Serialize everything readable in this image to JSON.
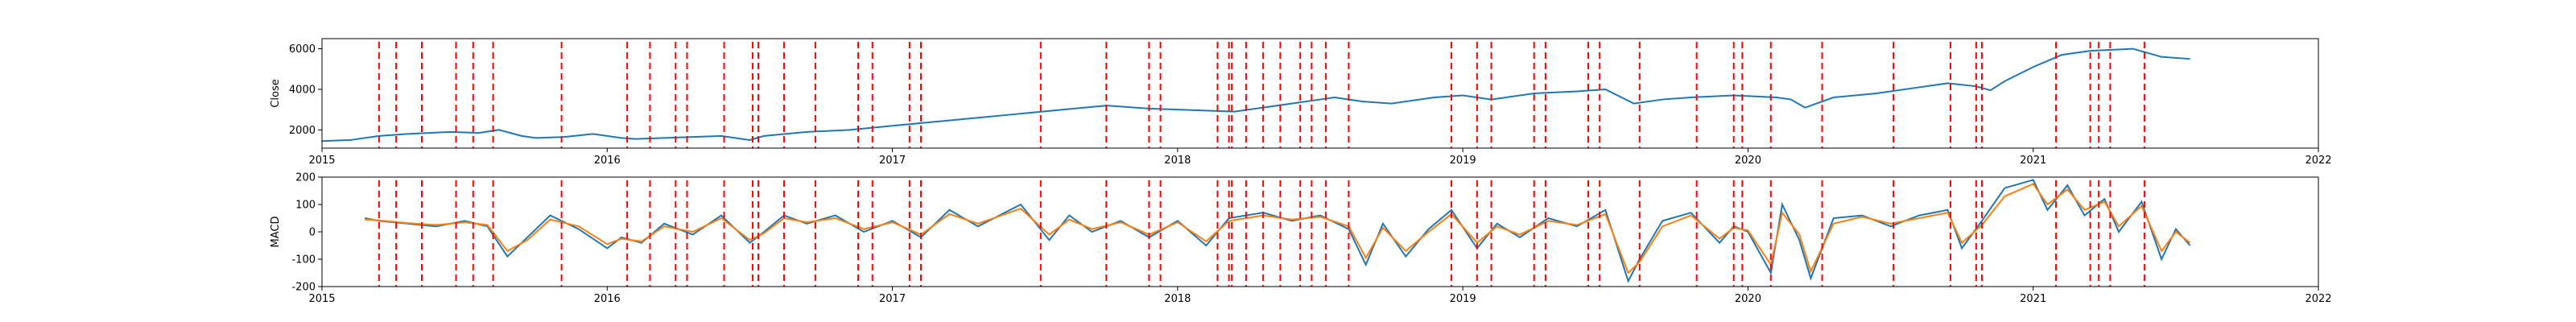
{
  "chart_data": [
    {
      "type": "line",
      "ylabel": "Close",
      "xlim": [
        2015,
        2022
      ],
      "ylim": [
        1100,
        6500
      ],
      "x_ticks": [
        "2015",
        "2016",
        "2017",
        "2018",
        "2019",
        "2020",
        "2021",
        "2022"
      ],
      "y_ticks": [
        2000,
        4000,
        6000
      ],
      "series": [
        {
          "color": "#1f77b4",
          "x": [
            2015.0,
            2015.1,
            2015.2,
            2015.3,
            2015.45,
            2015.55,
            2015.62,
            2015.7,
            2015.75,
            2015.85,
            2015.95,
            2016.05,
            2016.1,
            2016.2,
            2016.3,
            2016.4,
            2016.5,
            2016.55,
            2016.7,
            2016.85,
            2017.0,
            2017.15,
            2017.3,
            2017.45,
            2017.6,
            2017.75,
            2017.9,
            2018.0,
            2018.1,
            2018.2,
            2018.3,
            2018.4,
            2018.5,
            2018.55,
            2018.65,
            2018.75,
            2018.9,
            2019.0,
            2019.1,
            2019.25,
            2019.4,
            2019.5,
            2019.6,
            2019.7,
            2019.8,
            2019.95,
            2020.1,
            2020.15,
            2020.2,
            2020.3,
            2020.45,
            2020.6,
            2020.7,
            2020.8,
            2020.85,
            2020.9,
            2021.0,
            2021.1,
            2021.2,
            2021.35,
            2021.45,
            2021.55
          ],
          "values": [
            1450,
            1500,
            1700,
            1800,
            1900,
            1850,
            2000,
            1700,
            1600,
            1650,
            1800,
            1600,
            1550,
            1600,
            1650,
            1700,
            1500,
            1700,
            1900,
            2000,
            2200,
            2400,
            2600,
            2800,
            3000,
            3200,
            3050,
            3000,
            2950,
            2900,
            3100,
            3300,
            3500,
            3600,
            3400,
            3300,
            3600,
            3700,
            3500,
            3800,
            3900,
            4000,
            3300,
            3500,
            3600,
            3700,
            3600,
            3500,
            3100,
            3600,
            3800,
            4100,
            4300,
            4150,
            3950,
            4400,
            5100,
            5700,
            5900,
            6000,
            5600,
            5500
          ]
        }
      ],
      "signal_x": [
        2015.2,
        2015.26,
        2015.35,
        2015.47,
        2015.53,
        2015.6,
        2015.84,
        2016.07,
        2016.15,
        2016.24,
        2016.28,
        2016.41,
        2016.51,
        2016.53,
        2016.62,
        2016.73,
        2016.88,
        2016.93,
        2017.06,
        2017.1,
        2017.52,
        2017.75,
        2017.9,
        2017.94,
        2018.14,
        2018.18,
        2018.19,
        2018.24,
        2018.3,
        2018.36,
        2018.43,
        2018.47,
        2018.52,
        2018.6,
        2018.96,
        2019.05,
        2019.1,
        2019.25,
        2019.29,
        2019.44,
        2019.48,
        2019.62,
        2019.82,
        2019.95,
        2019.98,
        2020.08,
        2020.26,
        2020.51,
        2020.71,
        2020.8,
        2020.82,
        2021.08,
        2021.2,
        2021.23,
        2021.27,
        2021.39
      ]
    },
    {
      "type": "line",
      "ylabel": "MACD",
      "xlim": [
        2015,
        2022
      ],
      "ylim": [
        -200,
        200
      ],
      "x_ticks": [
        "2015",
        "2016",
        "2017",
        "2018",
        "2019",
        "2020",
        "2021",
        "2022"
      ],
      "y_ticks": [
        -200,
        -100,
        0,
        100,
        200
      ],
      "series": [
        {
          "color": "#1f77b4",
          "x": [
            2015.15,
            2015.2,
            2015.3,
            2015.4,
            2015.5,
            2015.58,
            2015.65,
            2015.72,
            2015.8,
            2015.9,
            2016.0,
            2016.05,
            2016.12,
            2016.2,
            2016.3,
            2016.4,
            2016.5,
            2016.55,
            2016.62,
            2016.7,
            2016.8,
            2016.9,
            2017.0,
            2017.1,
            2017.2,
            2017.3,
            2017.45,
            2017.55,
            2017.62,
            2017.7,
            2017.8,
            2017.9,
            2018.0,
            2018.1,
            2018.18,
            2018.3,
            2018.4,
            2018.5,
            2018.6,
            2018.66,
            2018.72,
            2018.8,
            2018.88,
            2018.96,
            2019.05,
            2019.12,
            2019.2,
            2019.3,
            2019.4,
            2019.5,
            2019.58,
            2019.62,
            2019.7,
            2019.8,
            2019.9,
            2019.95,
            2020.0,
            2020.08,
            2020.12,
            2020.18,
            2020.22,
            2020.3,
            2020.4,
            2020.5,
            2020.6,
            2020.7,
            2020.75,
            2020.82,
            2020.9,
            2021.0,
            2021.05,
            2021.12,
            2021.18,
            2021.25,
            2021.3,
            2021.38,
            2021.45,
            2021.5,
            2021.55
          ],
          "values": [
            50,
            40,
            30,
            20,
            40,
            20,
            -90,
            -20,
            60,
            10,
            -60,
            -20,
            -40,
            30,
            -10,
            60,
            -40,
            0,
            60,
            30,
            60,
            0,
            40,
            -20,
            80,
            20,
            100,
            -30,
            60,
            0,
            40,
            -20,
            40,
            -50,
            50,
            70,
            40,
            60,
            10,
            -120,
            30,
            -90,
            10,
            80,
            -60,
            30,
            -20,
            50,
            20,
            80,
            -180,
            -100,
            40,
            70,
            -40,
            20,
            0,
            -150,
            100,
            -30,
            -170,
            50,
            60,
            20,
            60,
            80,
            -60,
            40,
            160,
            190,
            80,
            170,
            60,
            120,
            0,
            110,
            -100,
            10,
            -50
          ]
        },
        {
          "color": "#ff7f0e",
          "x": [
            2015.15,
            2015.2,
            2015.3,
            2015.4,
            2015.5,
            2015.58,
            2015.65,
            2015.72,
            2015.8,
            2015.9,
            2016.0,
            2016.05,
            2016.12,
            2016.2,
            2016.3,
            2016.4,
            2016.5,
            2016.55,
            2016.62,
            2016.7,
            2016.8,
            2016.9,
            2017.0,
            2017.1,
            2017.2,
            2017.3,
            2017.45,
            2017.55,
            2017.62,
            2017.7,
            2017.8,
            2017.9,
            2018.0,
            2018.1,
            2018.18,
            2018.3,
            2018.4,
            2018.5,
            2018.6,
            2018.66,
            2018.72,
            2018.8,
            2018.88,
            2018.96,
            2019.05,
            2019.12,
            2019.2,
            2019.3,
            2019.4,
            2019.5,
            2019.58,
            2019.62,
            2019.7,
            2019.8,
            2019.9,
            2019.95,
            2020.0,
            2020.08,
            2020.12,
            2020.18,
            2020.22,
            2020.3,
            2020.4,
            2020.5,
            2020.6,
            2020.7,
            2020.75,
            2020.82,
            2020.9,
            2021.0,
            2021.05,
            2021.12,
            2021.18,
            2021.25,
            2021.3,
            2021.38,
            2021.45,
            2021.5,
            2021.55
          ],
          "values": [
            45,
            42,
            32,
            25,
            35,
            25,
            -70,
            -30,
            45,
            20,
            -45,
            -25,
            -35,
            20,
            0,
            50,
            -30,
            -5,
            50,
            35,
            50,
            10,
            35,
            -10,
            65,
            30,
            85,
            -10,
            45,
            10,
            35,
            -10,
            35,
            -35,
            40,
            60,
            45,
            55,
            20,
            -95,
            15,
            -70,
            0,
            65,
            -40,
            20,
            -10,
            40,
            25,
            65,
            -150,
            -110,
            20,
            60,
            -25,
            15,
            5,
            -120,
            70,
            -10,
            -145,
            30,
            55,
            30,
            50,
            70,
            -40,
            25,
            130,
            175,
            100,
            155,
            80,
            110,
            20,
            95,
            -70,
            0,
            -40
          ]
        }
      ],
      "signal_x": [
        2015.2,
        2015.26,
        2015.35,
        2015.47,
        2015.53,
        2015.6,
        2015.84,
        2016.07,
        2016.15,
        2016.24,
        2016.28,
        2016.41,
        2016.51,
        2016.53,
        2016.62,
        2016.73,
        2016.88,
        2016.93,
        2017.06,
        2017.1,
        2017.52,
        2017.75,
        2017.9,
        2017.94,
        2018.14,
        2018.18,
        2018.19,
        2018.24,
        2018.3,
        2018.36,
        2018.43,
        2018.47,
        2018.52,
        2018.6,
        2018.96,
        2019.05,
        2019.1,
        2019.25,
        2019.29,
        2019.44,
        2019.48,
        2019.62,
        2019.82,
        2019.95,
        2019.98,
        2020.08,
        2020.26,
        2020.51,
        2020.71,
        2020.8,
        2020.82,
        2021.08,
        2021.2,
        2021.23,
        2021.27,
        2021.39
      ]
    }
  ]
}
